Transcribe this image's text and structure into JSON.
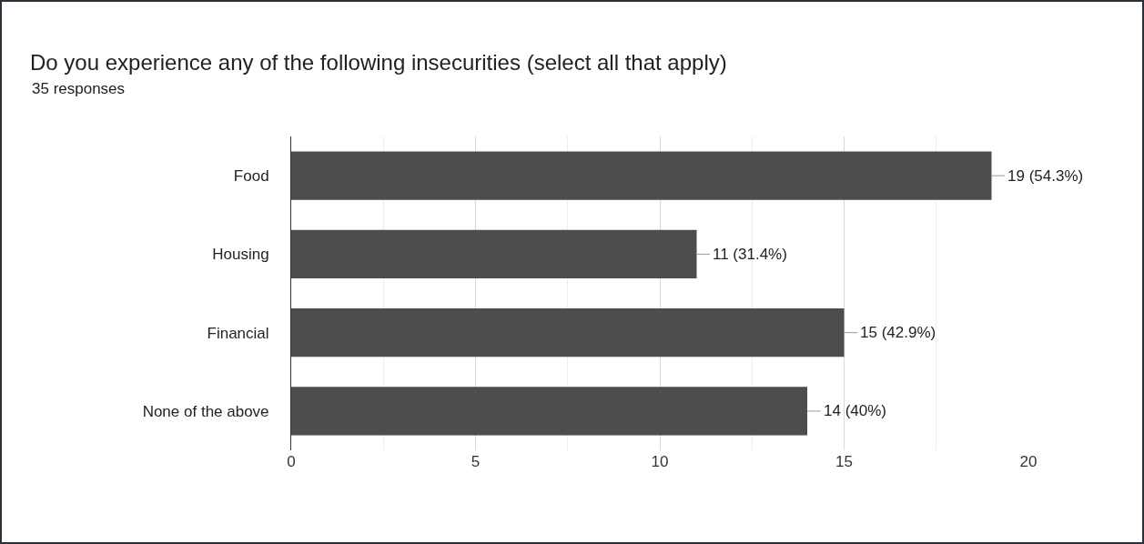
{
  "chart_data": {
    "type": "bar",
    "orientation": "horizontal",
    "title": "Do you experience any of the following insecurities (select all that apply)",
    "subtitle": "35 responses",
    "categories": [
      "Food",
      "Housing",
      "Financial",
      "None of the above"
    ],
    "values": [
      19,
      11,
      15,
      14
    ],
    "value_labels": [
      "19 (54.3%)",
      "11 (31.4%)",
      "15 (42.9%)",
      "14 (40%)"
    ],
    "color": "#4d4d4d",
    "xlim": [
      0,
      20
    ],
    "xticks": [
      0,
      5,
      10,
      15,
      20
    ],
    "grid": "x"
  }
}
